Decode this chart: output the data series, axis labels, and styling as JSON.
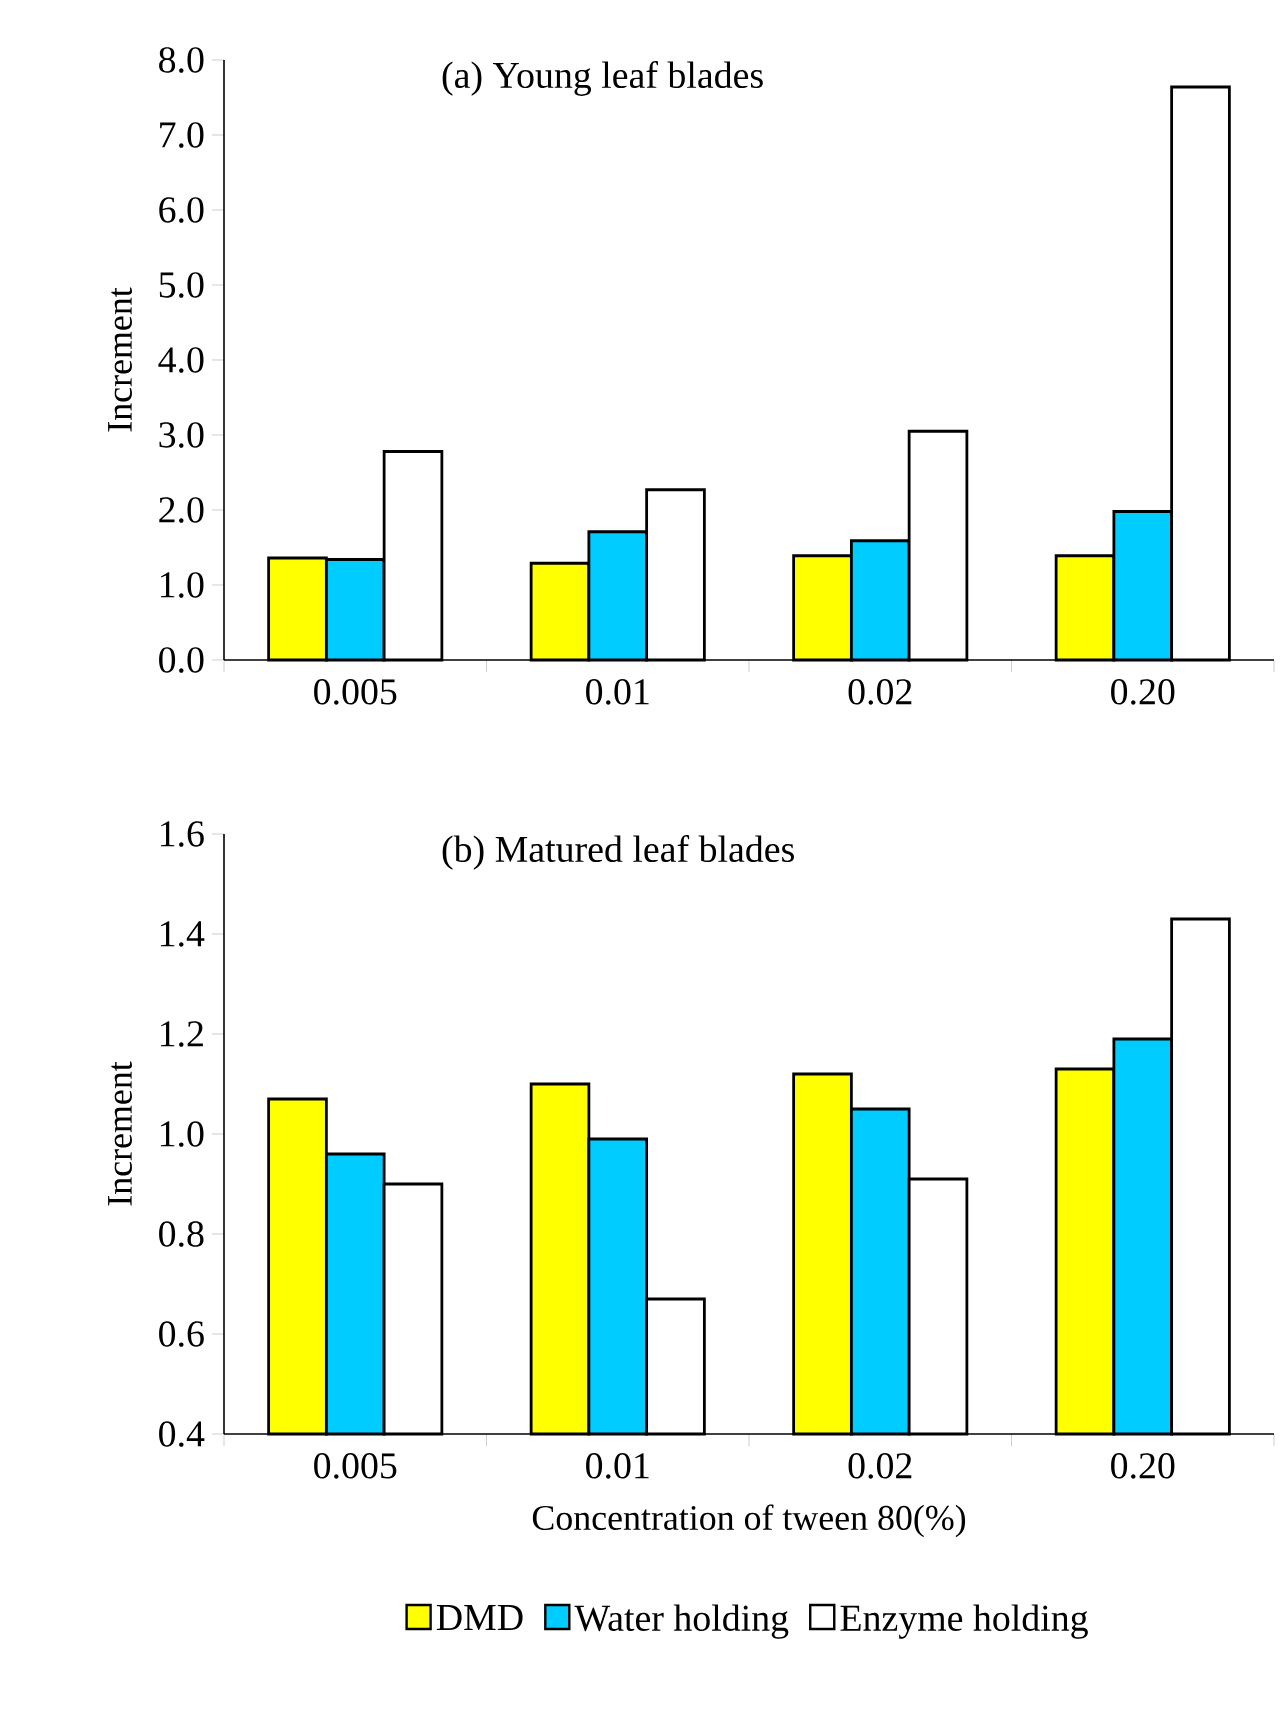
{
  "chart_data": [
    {
      "type": "bar",
      "title": "(a) Young leaf blades",
      "ylabel": "Increment",
      "categories": [
        "0.005",
        "0.01",
        "0.02",
        "0.20"
      ],
      "series": [
        {
          "color": "#ffff00",
          "values": [
            1.36,
            1.29,
            1.39,
            1.39
          ]
        },
        {
          "color": "#00ccff",
          "values": [
            1.34,
            1.71,
            1.59,
            1.98
          ]
        },
        {
          "color": "#ffffff",
          "values": [
            2.78,
            2.27,
            3.05,
            7.64
          ]
        }
      ],
      "ylim": [
        0,
        8
      ],
      "yticks": [
        {
          "value": 0,
          "label": "0.0"
        },
        {
          "value": 1,
          "label": "1.0"
        },
        {
          "value": 2,
          "label": "2.0"
        },
        {
          "value": 3,
          "label": "3.0"
        },
        {
          "value": 4,
          "label": "4.0"
        },
        {
          "value": 5,
          "label": "5.0"
        },
        {
          "value": 6,
          "label": "6.0"
        },
        {
          "value": 7,
          "label": "7.0"
        },
        {
          "value": 8,
          "label": "8.0"
        }
      ],
      "grid": false,
      "legend": false
    },
    {
      "type": "bar",
      "title": "(b) Matured leaf blades",
      "ylabel": "Increment",
      "xlabel": "Concentration of tween 80(%)",
      "categories": [
        "0.005",
        "0.01",
        "0.02",
        "0.20"
      ],
      "series": [
        {
          "name": "DMD",
          "color": "#ffff00",
          "values": [
            1.07,
            1.1,
            1.12,
            1.13
          ]
        },
        {
          "name": "Water  holding",
          "color": "#00ccff",
          "values": [
            0.96,
            0.99,
            1.05,
            1.19
          ]
        },
        {
          "name": "Enzyme  holding",
          "color": "#ffffff",
          "values": [
            0.9,
            0.67,
            0.91,
            1.43
          ]
        }
      ],
      "ylim": [
        0.4,
        1.6
      ],
      "yticks": [
        0.4,
        0.6,
        0.8,
        {
          "value": 1,
          "label": "1.0"
        },
        1.2,
        1.4,
        1.6
      ],
      "grid": false,
      "legend": "bottom"
    }
  ]
}
